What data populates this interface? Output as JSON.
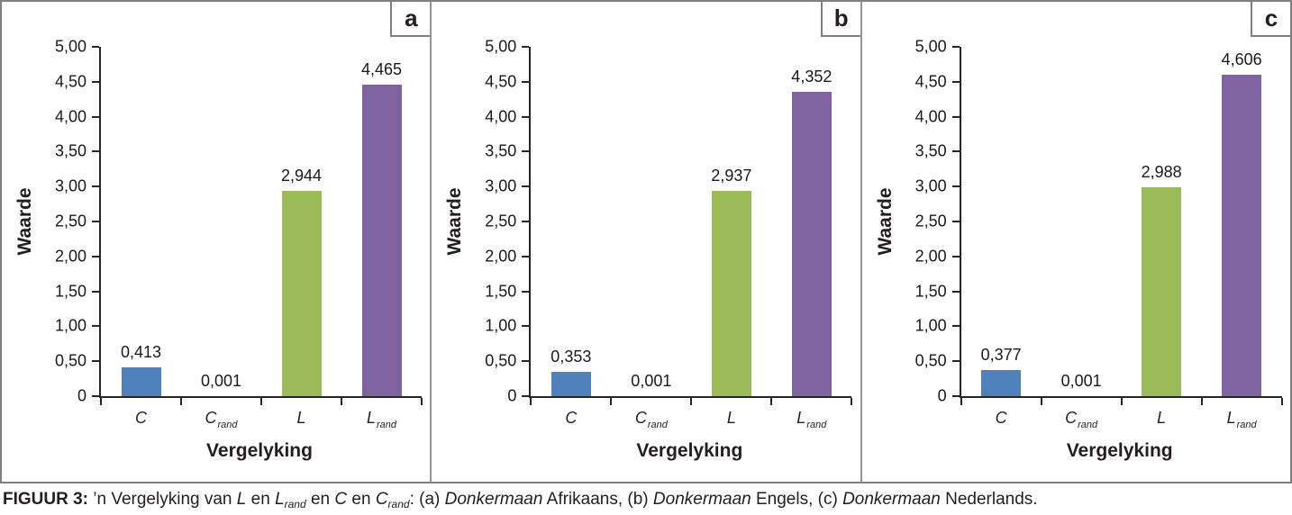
{
  "figure": {
    "caption_segments": [
      {
        "t": "FIGUUR 3: ",
        "b": 1
      },
      {
        "t": "’n Vergelyking van "
      },
      {
        "t": "L",
        "i": 1
      },
      {
        "t": " en "
      },
      {
        "t": "L",
        "i": 1
      },
      {
        "t": "rand",
        "i": 1,
        "s": 1
      },
      {
        "t": " en "
      },
      {
        "t": "C",
        "i": 1
      },
      {
        "t": " en "
      },
      {
        "t": "C",
        "i": 1
      },
      {
        "t": "rand",
        "i": 1,
        "s": 1
      },
      {
        "t": ": (a) "
      },
      {
        "t": "Donkermaan",
        "i": 1
      },
      {
        "t": " Afrikaans, (b) "
      },
      {
        "t": "Donkermaan",
        "i": 1
      },
      {
        "t": " Engels, (c) "
      },
      {
        "t": "Donkermaan",
        "i": 1
      },
      {
        "t": " Nederlands."
      }
    ]
  },
  "chart_data": [
    {
      "type": "bar",
      "panel_letter": "a",
      "title": "Donkermaan Afrikaans",
      "xlabel": "Vergelyking",
      "ylabel": "Waarde",
      "ylim": [
        0,
        5
      ],
      "ytick_step": 0.5,
      "ytick_labels": [
        "5,00",
        "4,50",
        "4,00",
        "3,50",
        "3,00",
        "2,50",
        "2,00",
        "1,50",
        "1,00",
        "0,50",
        "0"
      ],
      "grid": false,
      "categories": [
        {
          "base": "C",
          "sub": ""
        },
        {
          "base": "C",
          "sub": "rand"
        },
        {
          "base": "L",
          "sub": ""
        },
        {
          "base": "L",
          "sub": "rand"
        }
      ],
      "values": [
        0.413,
        0.001,
        2.944,
        4.465
      ],
      "value_labels": [
        "0,413",
        "0,001",
        "2,944",
        "4,465"
      ],
      "bar_colors": [
        "#4F81BD",
        "#4F81BD",
        "#9BBB59",
        "#8064A2"
      ]
    },
    {
      "type": "bar",
      "panel_letter": "b",
      "title": "Donkermaan Engels",
      "xlabel": "Vergelyking",
      "ylabel": "Waarde",
      "ylim": [
        0,
        5
      ],
      "ytick_step": 0.5,
      "ytick_labels": [
        "5,00",
        "4,50",
        "4,00",
        "3,50",
        "3,00",
        "2,50",
        "2,00",
        "1,50",
        "1,00",
        "0,50",
        "0"
      ],
      "grid": false,
      "categories": [
        {
          "base": "C",
          "sub": ""
        },
        {
          "base": "C",
          "sub": "rand"
        },
        {
          "base": "L",
          "sub": ""
        },
        {
          "base": "L",
          "sub": "rand"
        }
      ],
      "values": [
        0.353,
        0.001,
        2.937,
        4.352
      ],
      "value_labels": [
        "0,353",
        "0,001",
        "2,937",
        "4,352"
      ],
      "bar_colors": [
        "#4F81BD",
        "#4F81BD",
        "#9BBB59",
        "#8064A2"
      ]
    },
    {
      "type": "bar",
      "panel_letter": "c",
      "title": "Donkermaan Nederlands",
      "xlabel": "Vergelyking",
      "ylabel": "Waarde",
      "ylim": [
        0,
        5
      ],
      "ytick_step": 0.5,
      "ytick_labels": [
        "5,00",
        "4,50",
        "4,00",
        "3,50",
        "3,00",
        "2,50",
        "2,00",
        "1,50",
        "1,00",
        "0,50",
        "0"
      ],
      "grid": false,
      "categories": [
        {
          "base": "C",
          "sub": ""
        },
        {
          "base": "C",
          "sub": "rand"
        },
        {
          "base": "L",
          "sub": ""
        },
        {
          "base": "L",
          "sub": "rand"
        }
      ],
      "values": [
        0.377,
        0.001,
        2.988,
        4.606
      ],
      "value_labels": [
        "0,377",
        "0,001",
        "2,988",
        "4,606"
      ],
      "bar_colors": [
        "#4F81BD",
        "#4F81BD",
        "#9BBB59",
        "#8064A2"
      ]
    }
  ]
}
